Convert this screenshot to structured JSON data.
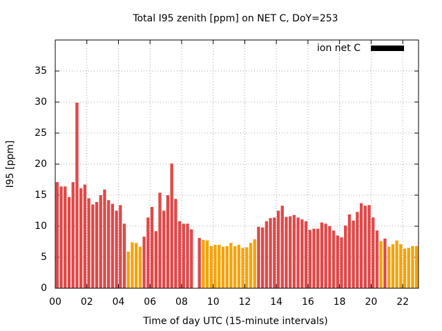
{
  "chart_data": {
    "type": "bar",
    "title": "Total I95 zenith [ppm] on NET C, DoY=253",
    "xlabel": "Time of day UTC (15-minute intervals)",
    "ylabel": "I95 [ppm]",
    "x": [
      0,
      0.25,
      0.5,
      0.75,
      1,
      1.25,
      1.5,
      1.75,
      2,
      2.25,
      2.5,
      2.75,
      3,
      3.25,
      3.5,
      3.75,
      4,
      4.25,
      4.5,
      4.75,
      5,
      5.25,
      5.5,
      5.75,
      6,
      6.25,
      6.5,
      6.75,
      7,
      7.25,
      7.5,
      7.75,
      8,
      8.25,
      8.5,
      8.75,
      9,
      9.25,
      9.5,
      9.75,
      10,
      10.25,
      10.5,
      10.75,
      11,
      11.25,
      11.5,
      11.75,
      12,
      12.25,
      12.5,
      12.75,
      13,
      13.25,
      13.5,
      13.75,
      14,
      14.25,
      14.5,
      14.75,
      15,
      15.25,
      15.5,
      15.75,
      16,
      16.25,
      16.5,
      16.75,
      17,
      17.25,
      17.5,
      17.75,
      18,
      18.25,
      18.5,
      18.75,
      19,
      19.25,
      19.5,
      19.75,
      20,
      20.25,
      20.5,
      20.75,
      21,
      21.25,
      21.5,
      21.75,
      22,
      22.25,
      22.5,
      22.75
    ],
    "series": [
      {
        "name": "ion net C",
        "color": "#000000",
        "values": [
          17.1,
          16.4,
          16.4,
          14.7,
          17.1,
          29.9,
          16.1,
          16.7,
          14.5,
          13.5,
          13.9,
          15.0,
          15.9,
          14.2,
          13.6,
          12.5,
          13.4,
          10.4,
          5.9,
          7.4,
          7.3,
          6.7,
          8.3,
          11.4,
          13.1,
          9.2,
          15.4,
          12.5,
          15.0,
          20.1,
          14.4,
          10.8,
          10.4,
          10.4,
          9.5,
          null,
          8.1,
          7.8,
          7.7,
          6.8,
          7.0,
          7.0,
          6.7,
          6.8,
          7.3,
          6.8,
          7.0,
          6.5,
          6.6,
          7.3,
          7.9,
          9.9,
          9.8,
          10.8,
          11.3,
          11.4,
          12.5,
          13.3,
          11.5,
          11.6,
          11.8,
          11.4,
          11.1,
          10.8,
          9.4,
          9.6,
          9.6,
          10.6,
          10.4,
          10.0,
          9.3,
          8.5,
          8.2,
          10.1,
          11.9,
          10.9,
          12.3,
          13.7,
          13.3,
          13.4,
          11.4,
          9.3,
          7.6,
          8.0,
          6.7,
          7.1,
          7.7,
          7.1,
          6.4,
          6.5,
          6.8,
          6.8
        ],
        "colors": [
          "#e04848",
          "#e04848",
          "#e04848",
          "#e04848",
          "#e04848",
          "#e04848",
          "#e04848",
          "#e04848",
          "#e04848",
          "#e04848",
          "#e04848",
          "#e04848",
          "#e04848",
          "#e04848",
          "#e04848",
          "#e04848",
          "#e04848",
          "#e04848",
          "#f5a30a",
          "#f5a30a",
          "#f5a30a",
          "#f5a30a",
          "#e04848",
          "#e04848",
          "#e04848",
          "#e04848",
          "#e04848",
          "#e04848",
          "#e04848",
          "#e04848",
          "#e04848",
          "#e04848",
          "#e04848",
          "#e04848",
          "#e04848",
          "#e04848",
          "#e04848",
          "#f5a30a",
          "#f5a30a",
          "#f5a30a",
          "#f5a30a",
          "#f5a30a",
          "#f5a30a",
          "#f5a30a",
          "#f5a30a",
          "#f5a30a",
          "#f5a30a",
          "#f5a30a",
          "#f5a30a",
          "#f5a30a",
          "#f5a30a",
          "#e04848",
          "#e04848",
          "#e04848",
          "#e04848",
          "#e04848",
          "#e04848",
          "#e04848",
          "#e04848",
          "#e04848",
          "#e04848",
          "#e04848",
          "#e04848",
          "#e04848",
          "#e04848",
          "#e04848",
          "#e04848",
          "#e04848",
          "#e04848",
          "#e04848",
          "#e04848",
          "#e04848",
          "#e04848",
          "#e04848",
          "#e04848",
          "#e04848",
          "#e04848",
          "#e04848",
          "#e04848",
          "#e04848",
          "#e04848",
          "#e04848",
          "#f5a30a",
          "#e04848",
          "#f5a30a",
          "#f5a30a",
          "#f5a30a",
          "#f5a30a",
          "#f5a30a",
          "#f5a30a",
          "#f5a30a",
          "#f5a30a"
        ]
      }
    ],
    "xlim": [
      0,
      23
    ],
    "ylim": [
      0,
      40
    ],
    "xticks": [
      {
        "value": 0,
        "label": "00"
      },
      {
        "value": 2,
        "label": "02"
      },
      {
        "value": 4,
        "label": "04"
      },
      {
        "value": 6,
        "label": "06"
      },
      {
        "value": 8,
        "label": "08"
      },
      10,
      12,
      14,
      16,
      18,
      20,
      22
    ],
    "yticks": [
      0,
      5,
      10,
      15,
      20,
      25,
      30,
      35
    ],
    "grid": true,
    "legend": "upper right"
  }
}
